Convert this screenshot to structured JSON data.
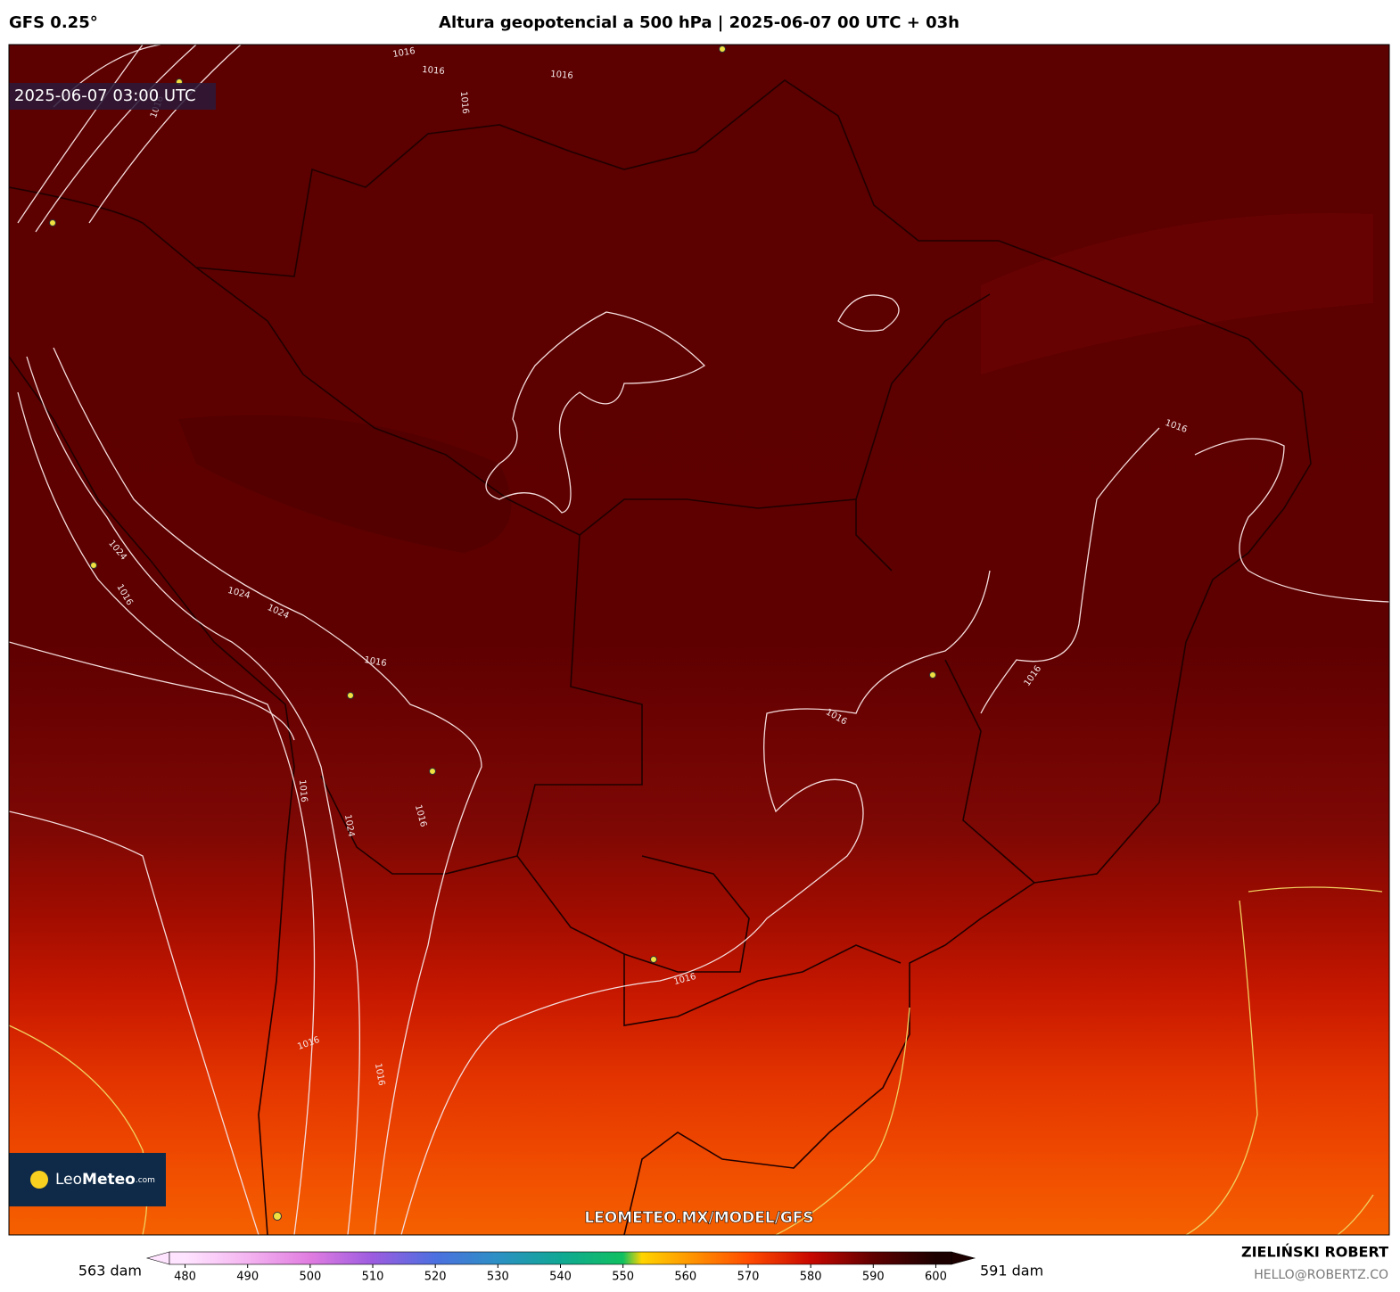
{
  "header": {
    "model": "GFS 0.25°",
    "title": "Altura geopotencial a 500 hPa | 2025-06-07 00 UTC + 03h"
  },
  "map": {
    "valid_time": "2025-06-07 03:00 UTC",
    "watermark": "LEOMETEO.MX/MODEL/GFS",
    "logo": {
      "name_light": "Leo",
      "name_bold": "Meteo",
      "suffix": ".com"
    },
    "contour_labels": [
      "1016",
      "1016",
      "1016",
      "1016",
      "1016",
      "1024",
      "1016",
      "1024",
      "1024",
      "1016",
      "1016",
      "1016",
      "1016",
      "1016",
      "1016",
      "1024",
      "1016",
      "1016",
      "1016"
    ]
  },
  "colorbar": {
    "min_label": "563 dam",
    "max_label": "591 dam",
    "lim": [
      477.5,
      602.5
    ],
    "ticks": [
      480,
      490,
      500,
      510,
      520,
      530,
      540,
      550,
      560,
      570,
      580,
      590,
      600
    ],
    "stops": [
      {
        "value": 480,
        "color": "#ffe4ff"
      },
      {
        "value": 490,
        "color": "#f4b4f0"
      },
      {
        "value": 500,
        "color": "#e07ce0"
      },
      {
        "value": 510,
        "color": "#9c5ce0"
      },
      {
        "value": 520,
        "color": "#4c70e0"
      },
      {
        "value": 530,
        "color": "#2c90c4"
      },
      {
        "value": 540,
        "color": "#10a894"
      },
      {
        "value": 550,
        "color": "#10c060"
      },
      {
        "value": 553,
        "color": "#ffd400"
      },
      {
        "value": 560,
        "color": "#ff9c00"
      },
      {
        "value": 570,
        "color": "#ff4c00"
      },
      {
        "value": 580,
        "color": "#c80800"
      },
      {
        "value": 590,
        "color": "#600000"
      },
      {
        "value": 600,
        "color": "#1c0000"
      }
    ]
  },
  "credit": {
    "author": "ZIELIŃSKI ROBERT",
    "email": "HELLO@ROBERTZ.CO"
  }
}
